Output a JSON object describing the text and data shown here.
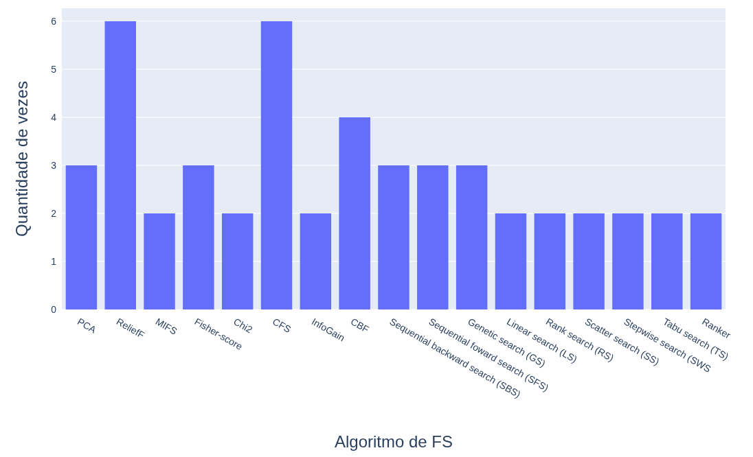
{
  "chart_data": {
    "type": "bar",
    "xlabel": "Algoritmo de FS",
    "ylabel": "Quantidade de vezes",
    "categories": [
      "PCA",
      "ReliefF",
      "MIFS",
      "Fisher-score",
      "Chi2",
      "CFS",
      "InfoGain",
      "CBF",
      "Sequential backward search (SBS)",
      "Sequential foward search (SFS)",
      "Genetic search (GS)",
      "Linear search (LS)",
      "Rank search (RS)",
      "Scatter search (SS)",
      "Stepwise search (SWS",
      "Tabu search (TS)",
      "Ranker"
    ],
    "values": [
      3,
      6,
      2,
      3,
      2,
      6,
      2,
      4,
      3,
      3,
      3,
      2,
      2,
      2,
      2,
      2,
      2
    ],
    "color": "#636efa",
    "ylim": [
      0,
      6.27
    ],
    "yticks": [
      0,
      1,
      2,
      3,
      4,
      5,
      6
    ],
    "grid": "y"
  }
}
